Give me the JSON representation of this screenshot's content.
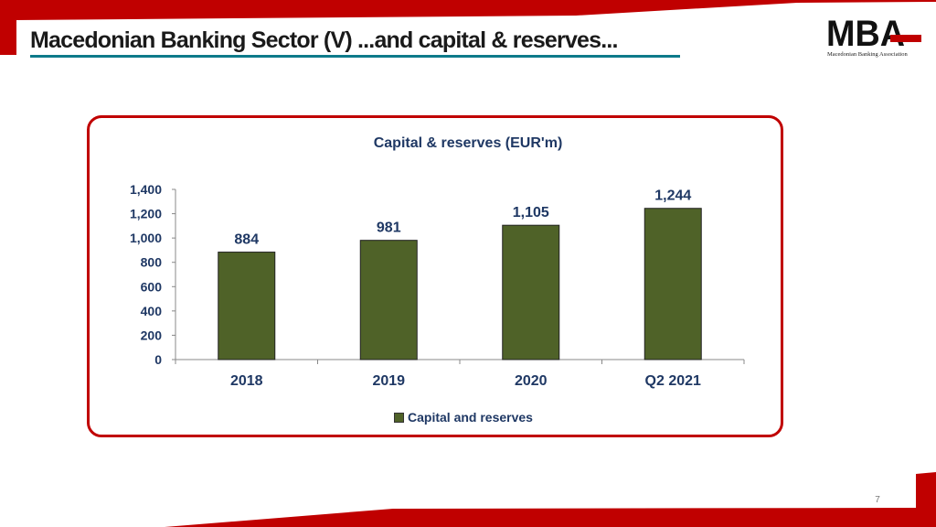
{
  "slide": {
    "title": "Macedonian Banking Sector (V) ...and capital & reserves...",
    "page_number": "7",
    "accent_color": "#c00000",
    "underline_color": "#0d7a8a"
  },
  "logo": {
    "text": "MBA",
    "caption": "Macedonian Banking Association"
  },
  "chart_data": {
    "type": "bar",
    "title": "Capital & reserves (EUR'm)",
    "categories": [
      "2018",
      "2019",
      "2020",
      "Q2 2021"
    ],
    "series": [
      {
        "name": "Capital and reserves",
        "values": [
          884,
          981,
          1105,
          1244
        ],
        "color": "#4f6228"
      }
    ],
    "data_labels": [
      "884",
      "981",
      "1,105",
      "1,244"
    ],
    "ylim": [
      0,
      1400
    ],
    "yticks": [
      0,
      200,
      400,
      600,
      800,
      1000,
      1200,
      1400
    ],
    "ytick_labels": [
      "0",
      "200",
      "400",
      "600",
      "800",
      "1,000",
      "1,200",
      "1,400"
    ],
    "grid": false,
    "legend_position": "bottom"
  }
}
